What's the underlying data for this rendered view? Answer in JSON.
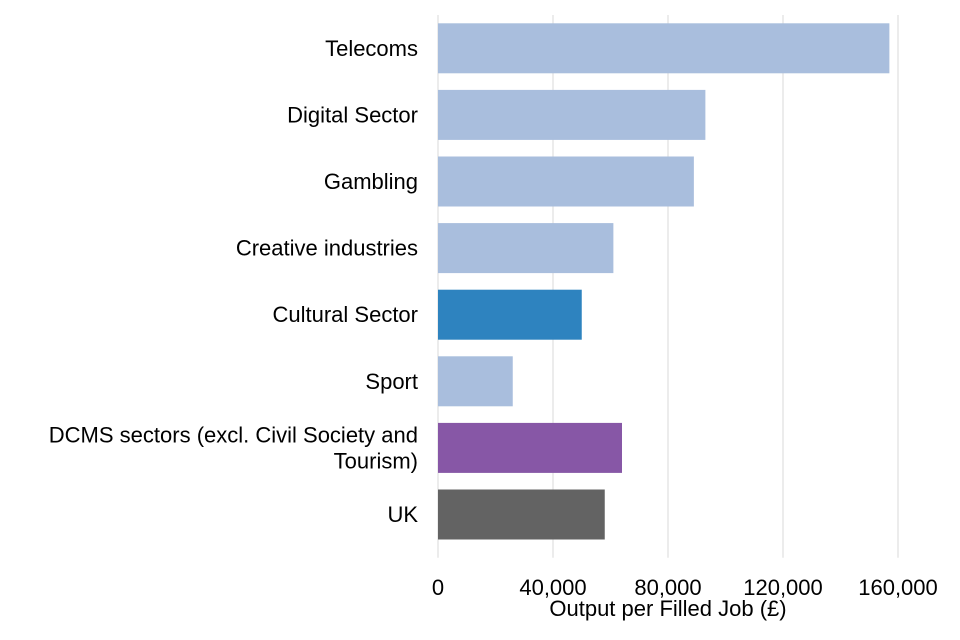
{
  "chart_data": {
    "type": "bar",
    "orientation": "horizontal",
    "categories": [
      [
        "Telecoms"
      ],
      [
        "Digital Sector"
      ],
      [
        "Gambling"
      ],
      [
        "Creative industries"
      ],
      [
        "Cultural Sector"
      ],
      [
        "Sport"
      ],
      [
        "DCMS sectors (excl. Civil Society and",
        "Tourism)"
      ],
      [
        "UK"
      ]
    ],
    "values": [
      157000,
      93000,
      89000,
      61000,
      50000,
      26000,
      64000,
      58000
    ],
    "bar_colors": [
      "#a9bedd",
      "#a9bedd",
      "#a9bedd",
      "#a9bedd",
      "#2e83bf",
      "#a9bedd",
      "#8757a6",
      "#636363"
    ],
    "xlim": [
      0,
      160000
    ],
    "xticks": [
      0,
      40000,
      80000,
      120000,
      160000
    ],
    "xtick_labels": [
      "0",
      "40,000",
      "80,000",
      "120,000",
      "160,000"
    ],
    "xlabel": "Output per Filled Job (£)",
    "ylabel": "",
    "title": "",
    "grid": "vertical",
    "legend": "none"
  }
}
